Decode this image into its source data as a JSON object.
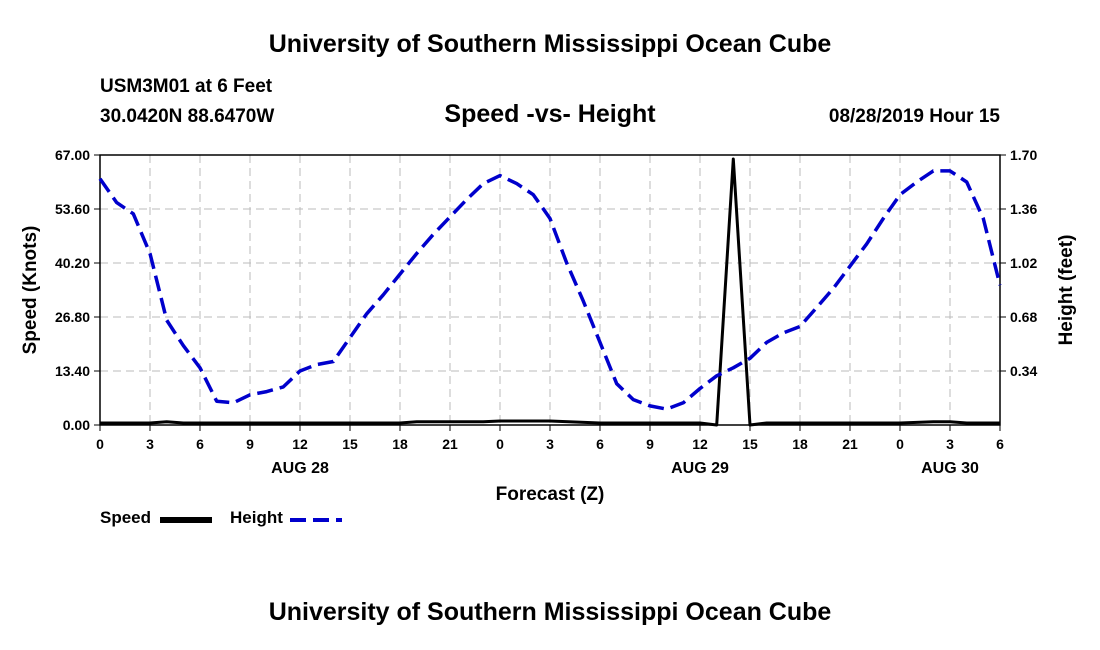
{
  "header": {
    "title": "University of Southern Mississippi Ocean Cube",
    "station": "USM3M01 at 6 Feet",
    "coordinates": "30.0420N 88.6470W",
    "subtitle": "Speed -vs- Height",
    "datetime": "08/28/2019 Hour 15"
  },
  "footer": {
    "title": "University of Southern Mississippi Ocean Cube"
  },
  "colors": {
    "speed": "#000000",
    "height": "#0000cc",
    "grid": "#bbbbbb"
  },
  "chart_data": {
    "type": "line",
    "title": "Speed -vs- Height",
    "xlabel": "Forecast (Z)",
    "ylabel_left": "Speed (Knots)",
    "ylabel_right": "Height (feet)",
    "xlim": [
      0,
      54
    ],
    "ylim_left": [
      0,
      67
    ],
    "ylim_right": [
      0,
      1.7
    ],
    "grid": true,
    "x_ticks": [
      0,
      3,
      6,
      9,
      12,
      15,
      18,
      21,
      24,
      27,
      30,
      33,
      36,
      39,
      42,
      45,
      48,
      51,
      54
    ],
    "x_tick_labels": [
      "0",
      "3",
      "6",
      "9",
      "12",
      "15",
      "18",
      "21",
      "0",
      "3",
      "6",
      "9",
      "12",
      "15",
      "18",
      "21",
      "0",
      "3",
      "6"
    ],
    "y_left_ticks": [
      0,
      13.4,
      26.8,
      40.2,
      53.6,
      67.0
    ],
    "y_left_tick_labels": [
      "0.00",
      "13.40",
      "26.80",
      "40.20",
      "53.60",
      "67.00"
    ],
    "y_right_ticks": [
      0.34,
      0.68,
      1.02,
      1.36,
      1.7
    ],
    "y_right_tick_labels": [
      "0.34",
      "0.68",
      "1.02",
      "1.36",
      "1.70"
    ],
    "date_labels": [
      {
        "x": 12,
        "label": "AUG 28"
      },
      {
        "x": 36,
        "label": "AUG 29"
      },
      {
        "x": 51,
        "label": "AUG 30"
      }
    ],
    "legend": [
      "Speed",
      "Height"
    ],
    "series": [
      {
        "name": "Speed",
        "axis": "left",
        "style": "solid",
        "x": [
          0,
          3,
          4,
          5,
          6,
          9,
          12,
          15,
          18,
          19,
          20,
          21,
          23,
          24,
          27,
          30,
          33,
          36,
          37,
          38,
          39,
          40,
          42,
          45,
          48,
          50,
          51,
          52,
          54
        ],
        "values": [
          0.5,
          0.5,
          0.8,
          0.5,
          0.5,
          0.5,
          0.5,
          0.5,
          0.5,
          0.8,
          0.8,
          0.8,
          0.8,
          1.0,
          1.0,
          0.5,
          0.5,
          0.5,
          0,
          66,
          0,
          0.5,
          0.5,
          0.5,
          0.5,
          0.8,
          0.8,
          0.5,
          0.5
        ]
      },
      {
        "name": "Height",
        "axis": "right",
        "style": "dashed",
        "x": [
          0,
          1,
          2,
          3,
          4,
          5,
          6,
          7,
          8,
          9,
          10,
          11,
          12,
          13,
          14,
          15,
          16,
          17,
          18,
          19,
          20,
          21,
          22,
          23,
          24,
          25,
          26,
          27,
          28,
          29,
          30,
          31,
          32,
          33,
          34,
          35,
          36,
          37,
          38,
          39,
          40,
          41,
          42,
          43,
          44,
          45,
          46,
          47,
          48,
          49,
          50,
          51,
          52,
          53,
          54
        ],
        "values": [
          1.55,
          1.4,
          1.33,
          1.08,
          0.66,
          0.5,
          0.36,
          0.15,
          0.14,
          0.19,
          0.21,
          0.24,
          0.34,
          0.38,
          0.4,
          0.55,
          0.7,
          0.82,
          0.95,
          1.08,
          1.2,
          1.31,
          1.42,
          1.52,
          1.57,
          1.52,
          1.45,
          1.3,
          1.02,
          0.78,
          0.52,
          0.26,
          0.16,
          0.12,
          0.1,
          0.14,
          0.23,
          0.31,
          0.36,
          0.42,
          0.52,
          0.58,
          0.62,
          0.74,
          0.86,
          1.0,
          1.14,
          1.3,
          1.45,
          1.53,
          1.6,
          1.6,
          1.53,
          1.3,
          0.88
        ]
      }
    ]
  }
}
